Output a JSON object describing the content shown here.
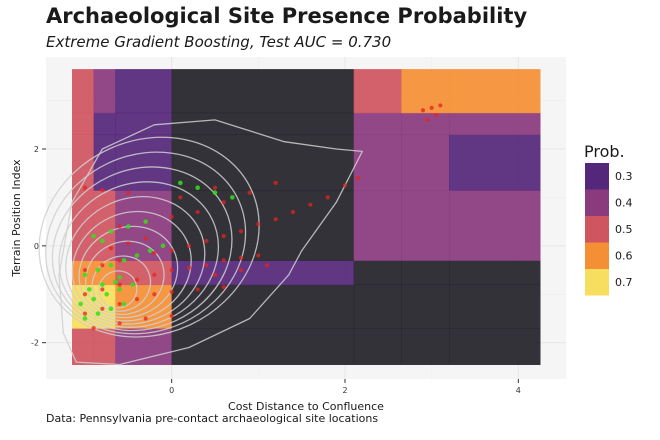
{
  "title": "Archaeological Site Presence Probability",
  "subtitle": "Extreme Gradient Boosting, Test AUC = 0.730",
  "caption": "Data: Pennsylvania pre-contact archaeological site locations",
  "chart_data": {
    "type": "heatmap",
    "xlabel": "Cost Distance to Confluence",
    "ylabel": "Terrain Position Index",
    "xlim": [
      -1.45,
      4.55
    ],
    "ylim": [
      -2.75,
      3.9
    ],
    "x_ticks": [
      0,
      2,
      4
    ],
    "y_ticks": [
      -2,
      0,
      2
    ],
    "grid": true,
    "legend": {
      "title": "Prob.",
      "position": "right",
      "entries": [
        {
          "label": "0.3",
          "value": 0.3,
          "color": "#55277a"
        },
        {
          "label": "0.4",
          "value": 0.4,
          "color": "#8a3a7d"
        },
        {
          "label": "0.5",
          "value": 0.5,
          "color": "#cf5561"
        },
        {
          "label": "0.6",
          "value": 0.6,
          "color": "#f58f35"
        },
        {
          "label": "0.7",
          "value": 0.7,
          "color": "#f7de5e"
        }
      ]
    },
    "x_breaks": [
      -1.15,
      -0.9,
      -0.65,
      0.0,
      2.1,
      2.65,
      3.2,
      4.25
    ],
    "y_breaks": [
      -2.45,
      -1.7,
      -0.8,
      -0.3,
      1.15,
      2.3,
      2.75,
      3.65
    ],
    "cells": [
      [
        0.5,
        0.5,
        0.4,
        0.2,
        0.2,
        0.2,
        0.2
      ],
      [
        0.7,
        0.7,
        0.6,
        0.2,
        0.2,
        0.2,
        0.2
      ],
      [
        0.6,
        0.6,
        0.5,
        0.3,
        0.2,
        0.2,
        0.2
      ],
      [
        0.5,
        0.5,
        0.4,
        0.2,
        0.4,
        0.4,
        0.4
      ],
      [
        0.5,
        0.3,
        0.3,
        0.2,
        0.4,
        0.4,
        0.3
      ],
      [
        0.5,
        0.3,
        0.3,
        0.2,
        0.4,
        0.4,
        0.4
      ],
      [
        0.5,
        0.4,
        0.3,
        0.2,
        0.5,
        0.6,
        0.6
      ]
    ],
    "contours": [
      {
        "cx": -0.62,
        "cy": -0.9,
        "rx": 0.22,
        "ry": 0.38,
        "rot": -25
      },
      {
        "cx": -0.58,
        "cy": -0.78,
        "rx": 0.34,
        "ry": 0.56,
        "rot": -25
      },
      {
        "cx": -0.54,
        "cy": -0.66,
        "rx": 0.46,
        "ry": 0.74,
        "rot": -25
      },
      {
        "cx": -0.5,
        "cy": -0.54,
        "rx": 0.58,
        "ry": 0.92,
        "rot": -25
      },
      {
        "cx": -0.46,
        "cy": -0.42,
        "rx": 0.7,
        "ry": 1.1,
        "rot": -25
      },
      {
        "cx": -0.42,
        "cy": -0.3,
        "rx": 0.82,
        "ry": 1.28,
        "rot": -25
      },
      {
        "cx": -0.38,
        "cy": -0.18,
        "rx": 0.94,
        "ry": 1.46,
        "rot": -25
      },
      {
        "cx": -0.34,
        "cy": -0.06,
        "rx": 1.06,
        "ry": 1.64,
        "rot": -25
      },
      {
        "cx": -0.3,
        "cy": 0.06,
        "rx": 1.18,
        "ry": 1.82,
        "rot": -25
      },
      {
        "cx": -0.26,
        "cy": 0.18,
        "rx": 1.3,
        "ry": 2.0,
        "rot": -25
      }
    ],
    "contour_outer": [
      [
        -1.1,
        -2.4
      ],
      [
        -0.6,
        -2.45
      ],
      [
        0.2,
        -2.1
      ],
      [
        0.9,
        -1.5
      ],
      [
        1.35,
        -0.6
      ],
      [
        1.5,
        -0.1
      ],
      [
        1.9,
        0.9
      ],
      [
        2.2,
        1.95
      ],
      [
        1.9,
        2.0
      ],
      [
        1.3,
        2.15
      ],
      [
        0.5,
        2.6
      ],
      [
        -0.2,
        2.5
      ],
      [
        -0.8,
        2.0
      ],
      [
        -1.15,
        0.9
      ],
      [
        -1.3,
        -0.6
      ],
      [
        -1.25,
        -1.8
      ]
    ],
    "points_red": [
      [
        -1.0,
        -0.5
      ],
      [
        -0.8,
        -0.4
      ],
      [
        -0.6,
        -0.3
      ],
      [
        -0.4,
        -0.2
      ],
      [
        -0.2,
        -0.15
      ],
      [
        0.0,
        -0.1
      ],
      [
        0.2,
        0.0
      ],
      [
        0.4,
        0.1
      ],
      [
        0.6,
        0.2
      ],
      [
        0.8,
        0.3
      ],
      [
        1.0,
        0.45
      ],
      [
        1.2,
        0.55
      ],
      [
        1.4,
        0.7
      ],
      [
        1.6,
        0.85
      ],
      [
        1.8,
        1.0
      ],
      [
        2.0,
        1.25
      ],
      [
        2.15,
        1.4
      ],
      [
        -1.0,
        -1.0
      ],
      [
        -0.8,
        -0.9
      ],
      [
        -0.6,
        -0.8
      ],
      [
        -0.4,
        -0.7
      ],
      [
        -0.2,
        -0.6
      ],
      [
        0.0,
        -0.5
      ],
      [
        0.2,
        -0.45
      ],
      [
        0.4,
        -0.4
      ],
      [
        0.6,
        -0.3
      ],
      [
        0.8,
        -0.25
      ],
      [
        1.0,
        -0.2
      ],
      [
        -1.0,
        -1.4
      ],
      [
        -0.8,
        -1.3
      ],
      [
        -0.6,
        -1.2
      ],
      [
        -0.4,
        -1.1
      ],
      [
        -0.2,
        -1.0
      ],
      [
        0.0,
        -0.95
      ],
      [
        0.3,
        -0.9
      ],
      [
        0.6,
        -0.85
      ],
      [
        -0.9,
        -1.7
      ],
      [
        -0.6,
        -1.6
      ],
      [
        -0.3,
        -1.5
      ],
      [
        0.0,
        -1.45
      ],
      [
        -0.6,
        0.4
      ],
      [
        -0.3,
        0.5
      ],
      [
        0.0,
        0.6
      ],
      [
        0.3,
        0.7
      ],
      [
        0.6,
        0.9
      ],
      [
        0.9,
        1.1
      ],
      [
        1.2,
        1.3
      ],
      [
        -1.0,
        1.2
      ],
      [
        -0.8,
        1.15
      ],
      [
        -0.5,
        1.1
      ],
      [
        0.1,
        1.0
      ],
      [
        0.5,
        1.2
      ],
      [
        2.9,
        2.8
      ],
      [
        3.0,
        2.85
      ],
      [
        3.1,
        2.9
      ],
      [
        2.95,
        2.6
      ],
      [
        3.05,
        2.7
      ],
      [
        0.5,
        -0.6
      ],
      [
        0.8,
        -0.5
      ],
      [
        1.1,
        -0.4
      ],
      [
        -0.7,
        -0.05
      ],
      [
        -0.5,
        0.05
      ],
      [
        -0.3,
        0.15
      ]
    ],
    "points_green": [
      [
        -1.0,
        -0.6
      ],
      [
        -0.85,
        -0.5
      ],
      [
        -0.7,
        -0.4
      ],
      [
        -0.55,
        -0.3
      ],
      [
        -0.4,
        -0.2
      ],
      [
        -0.25,
        -0.1
      ],
      [
        -0.1,
        0.0
      ],
      [
        -1.05,
        -1.2
      ],
      [
        -0.9,
        -1.1
      ],
      [
        -0.75,
        -1.0
      ],
      [
        -0.6,
        -0.9
      ],
      [
        -0.45,
        -0.8
      ],
      [
        -1.0,
        -1.5
      ],
      [
        -0.85,
        -1.4
      ],
      [
        -0.7,
        -1.3
      ],
      [
        -0.55,
        -1.2
      ],
      [
        -0.95,
        -0.9
      ],
      [
        -0.8,
        -0.8
      ],
      [
        -0.65,
        -0.75
      ],
      [
        -0.9,
        0.2
      ],
      [
        -0.7,
        0.3
      ],
      [
        -0.5,
        0.4
      ],
      [
        -0.3,
        0.5
      ],
      [
        0.1,
        1.3
      ],
      [
        0.3,
        1.2
      ],
      [
        0.5,
        1.1
      ],
      [
        0.7,
        1.0
      ],
      [
        -0.8,
        0.1
      ],
      [
        -0.6,
        -0.65
      ]
    ]
  }
}
